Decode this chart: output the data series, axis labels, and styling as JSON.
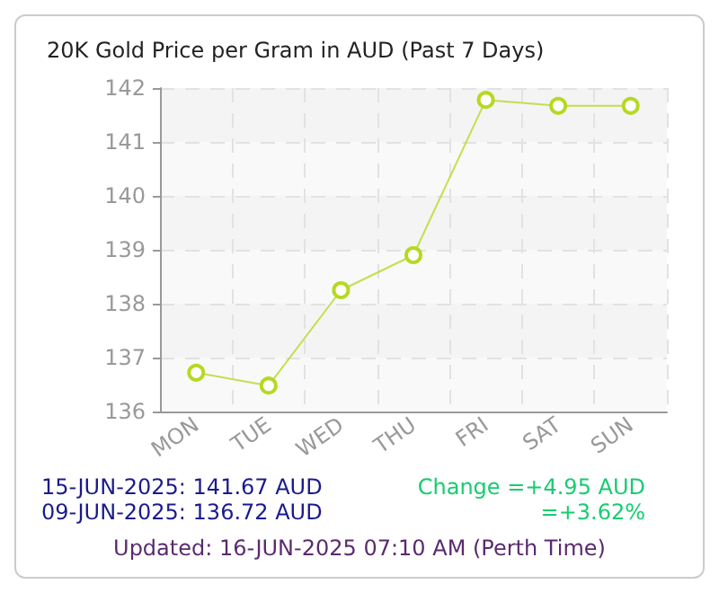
{
  "chart_data": {
    "type": "line",
    "title": "20K Gold Price per Gram in AUD (Past 7 Days)",
    "categories": [
      "MON",
      "TUE",
      "WED",
      "THU",
      "FRI",
      "SAT",
      "SUN"
    ],
    "series": [
      {
        "color": "#b5d922",
        "values": [
          136.72,
          136.48,
          138.25,
          138.9,
          141.78,
          141.67,
          141.67
        ]
      }
    ],
    "ylim": [
      136,
      142
    ],
    "yticks": [
      136,
      137,
      138,
      139,
      140,
      141,
      142
    ],
    "grid": true,
    "marker": "circle",
    "line_style": "solid",
    "annotations": [
      "15-JUN-2025: 141.67 AUD",
      "09-JUN-2025: 136.72 AUD",
      "Change =+4.95 AUD",
      "=+3.62%",
      "Updated: 16-JUN-2025 07:10 AM (Perth Time)"
    ]
  }
}
